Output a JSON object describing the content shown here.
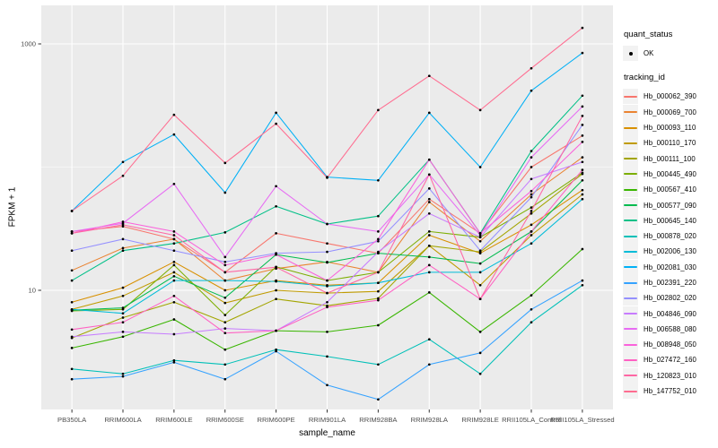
{
  "figure": {
    "xlabel": "sample_name",
    "ylabel": "FPKM + 1"
  },
  "legend": {
    "quant_status_title": "quant_status",
    "quant_status_items": [
      "OK"
    ],
    "tracking_id_title": "tracking_id"
  },
  "chart_data": {
    "type": "line",
    "x_type": "categorical",
    "y_scale": "log10",
    "xlabel": "sample_name",
    "ylabel": "FPKM + 1",
    "y_tick_values": [
      1000,
      10
    ],
    "y_tick_labels": [
      "1000",
      "10"
    ],
    "y_minor_gridlines": [
      100
    ],
    "ylim": [
      1.1,
      2000
    ],
    "grid": true,
    "legend_position": "right",
    "categories": [
      "PB350LA",
      "RRIM600LA",
      "RRIM600LE",
      "RRIM600SE",
      "RRIM600PE",
      "RRIM901LA",
      "RRIM928BA",
      "RRIM928LA",
      "RRIM928LE",
      "RRII105LA_Control",
      "RRII105LA_Stressed"
    ],
    "marker": {
      "shape": "point",
      "color": "#000000"
    },
    "style": {
      "panel_bg": "#EBEBEB",
      "grid_color": "#FFFFFF",
      "tick_color": "#333333",
      "tick_label_color": "#4D4D4D",
      "legend_key_bg": "#F2F2F2"
    },
    "series": [
      {
        "name": "Hb_000062_390",
        "color": "#F8766D",
        "values": [
          30,
          33,
          26,
          14,
          29,
          24,
          20,
          55,
          29,
          100,
          180
        ]
      },
      {
        "name": "Hb_000069_700",
        "color": "#EA8331",
        "values": [
          14.5,
          22,
          26,
          12,
          15,
          17,
          14,
          52,
          25,
          60,
          120
        ]
      },
      {
        "name": "Hb_000093_110",
        "color": "#D89000",
        "values": [
          8,
          10.5,
          17,
          10,
          12,
          11,
          11.5,
          28,
          20,
          34,
          65
        ]
      },
      {
        "name": "Hb_000110_170",
        "color": "#C09B00",
        "values": [
          7,
          9,
          14,
          7.9,
          10,
          9.5,
          9.8,
          23,
          11,
          28,
          60
        ]
      },
      {
        "name": "Hb_000111_100",
        "color": "#A3A500",
        "values": [
          4.1,
          6,
          8,
          5.5,
          8.5,
          7.5,
          8.6,
          23,
          20.5,
          42,
          88
        ]
      },
      {
        "name": "Hb_000445_490",
        "color": "#7CAE00",
        "values": [
          6.8,
          7,
          16,
          6.3,
          15.5,
          12,
          14,
          30,
          27,
          47,
          90
        ]
      },
      {
        "name": "Hb_000567_410",
        "color": "#39B600",
        "values": [
          3.4,
          4.2,
          5.8,
          3.3,
          4.7,
          4.6,
          5.2,
          9.6,
          4.6,
          9.1,
          21.6
        ]
      },
      {
        "name": "Hb_000577_090",
        "color": "#00BB4E",
        "values": [
          6.9,
          7.2,
          13,
          8.7,
          19.5,
          16.8,
          20,
          18.6,
          16.5,
          30,
          78
        ]
      },
      {
        "name": "Hb_000645_140",
        "color": "#00C087",
        "values": [
          12,
          21,
          24,
          29.5,
          48,
          34.5,
          40,
          115,
          29,
          135,
          380
        ]
      },
      {
        "name": "Hb_000878_020",
        "color": "#00C0B8",
        "values": [
          2.3,
          2.1,
          2.7,
          2.5,
          3.3,
          2.9,
          2.5,
          4.0,
          2.1,
          5.5,
          11
        ]
      },
      {
        "name": "Hb_002006_130",
        "color": "#00BCD8",
        "values": [
          7,
          6.5,
          12,
          12,
          11.8,
          10.8,
          11.5,
          14,
          14,
          24,
          55
        ]
      },
      {
        "name": "Hb_002081_030",
        "color": "#00B0F6",
        "values": [
          44,
          110,
          184,
          62,
          276,
          83,
          78,
          276,
          100,
          417,
          845
        ]
      },
      {
        "name": "Hb_002391_220",
        "color": "#35A2FF",
        "values": [
          1.9,
          2.0,
          2.6,
          1.9,
          3.2,
          1.7,
          1.3,
          2.5,
          3.1,
          7,
          12
        ]
      },
      {
        "name": "Hb_002802_020",
        "color": "#9590FF",
        "values": [
          21,
          26,
          21,
          17,
          20,
          20.5,
          25,
          67,
          21,
          57,
          220
        ]
      },
      {
        "name": "Hb_004846_090",
        "color": "#C77CFF",
        "values": [
          4.2,
          4.6,
          4.4,
          4.9,
          4.7,
          8,
          20.5,
          42,
          27,
          80,
          110
        ]
      },
      {
        "name": "Hb_006588_080",
        "color": "#E76BF3",
        "values": [
          30,
          35,
          73,
          18.6,
          70,
          34.5,
          30,
          87,
          28,
          120,
          310
        ]
      },
      {
        "name": "Hb_008948_050",
        "color": "#FA62DB",
        "values": [
          29,
          36,
          30,
          16,
          19.5,
          12,
          26,
          115,
          29,
          64,
          160
        ]
      },
      {
        "name": "Hb_027472_160",
        "color": "#FF61C3",
        "values": [
          4.8,
          5.5,
          9,
          4.5,
          4.7,
          7.3,
          8.3,
          16,
          8.5,
          30,
          95
        ]
      },
      {
        "name": "Hb_120823_010",
        "color": "#FF67A4",
        "values": [
          29,
          34,
          28,
          14,
          15.4,
          9.5,
          14,
          87,
          8.5,
          44,
          260
        ]
      },
      {
        "name": "Hb_147752_010",
        "color": "#FF6C90",
        "values": [
          44,
          85,
          266,
          108,
          225,
          82,
          290,
          550,
          290,
          634,
          1350
        ]
      }
    ]
  }
}
